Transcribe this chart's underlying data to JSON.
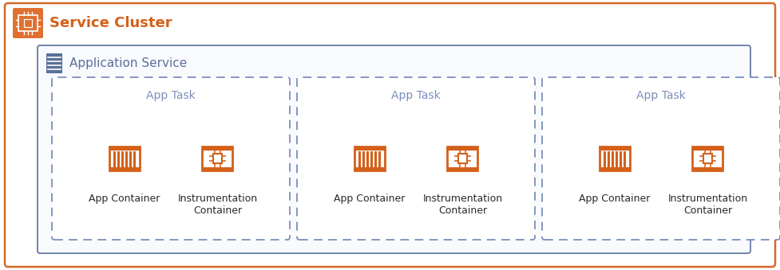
{
  "bg_color": "#ffffff",
  "outer_border_color": "#d4692a",
  "outer_border_lw": 1.5,
  "service_cluster_color": "#e07030",
  "service_cluster_label": "Service Cluster",
  "app_service_border_color": "#5a7099",
  "app_service_header_color": "#5a7099",
  "app_service_bg": "#f9fafe",
  "app_service_label": "Application Service",
  "app_task_border_color": "#7a8fbb",
  "app_task_label": "App Task",
  "container_icon_color": "#d4601a",
  "app_container_label": "App Container",
  "instrumentation_label": "Instrumentation\nContainer",
  "label_color": "#5a7099",
  "title_color": "#d4601a",
  "figsize": [
    9.77,
    3.39
  ],
  "dpi": 100
}
